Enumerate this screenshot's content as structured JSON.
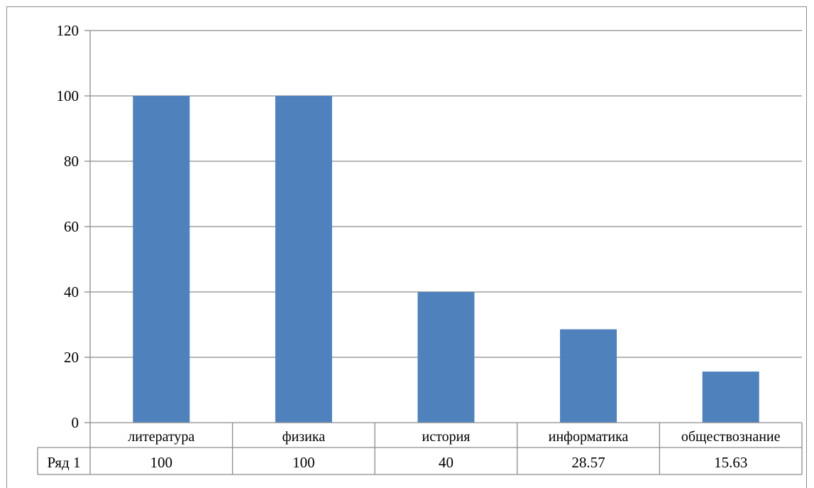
{
  "chart_data": {
    "type": "bar",
    "categories": [
      "литература",
      "физика",
      "история",
      "информатика",
      "обществознание"
    ],
    "series": [
      {
        "name": "Ряд 1",
        "values": [
          100,
          100,
          40,
          28.57,
          15.63
        ],
        "value_labels": [
          "100",
          "100",
          "40",
          "28.57",
          "15.63"
        ],
        "color": "#4f81bd"
      }
    ],
    "ylim": [
      0,
      120
    ],
    "yticks": [
      "0",
      "20",
      "40",
      "60",
      "80",
      "100",
      "120"
    ],
    "grid": true,
    "data_table": true,
    "title": "",
    "xlabel": "",
    "ylabel": ""
  }
}
